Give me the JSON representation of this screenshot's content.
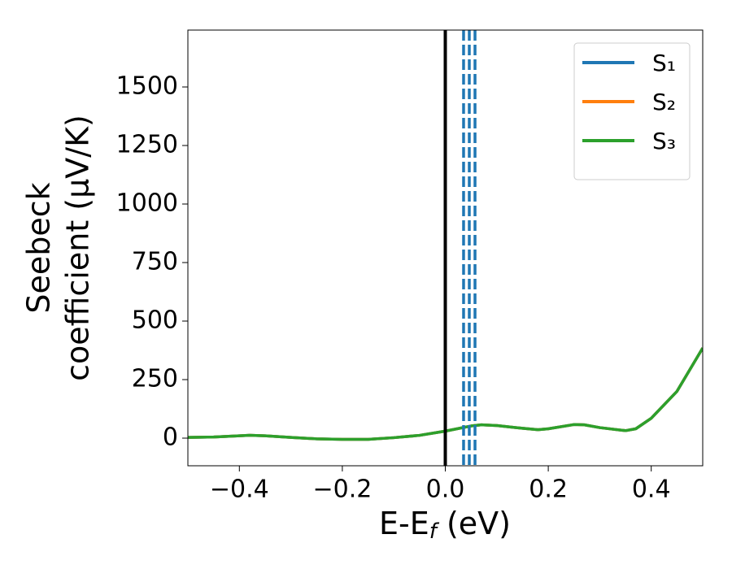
{
  "chart_data": {
    "type": "line",
    "ylabel": [
      "Seebeck",
      "coefficient  (μV/K)"
    ],
    "xlabel": {
      "main": "E-E",
      "sub": "f",
      "rest": " (eV)"
    },
    "x": [
      -0.5,
      -0.45,
      -0.4,
      -0.38,
      -0.35,
      -0.3,
      -0.25,
      -0.2,
      -0.15,
      -0.1,
      -0.05,
      0,
      0.05,
      0.07,
      0.1,
      0.15,
      0.18,
      0.2,
      0.25,
      0.27,
      0.3,
      0.35,
      0.37,
      0.4,
      0.45,
      0.5
    ],
    "series": [
      {
        "name": "S₁",
        "color": "#1f77b4",
        "values": [
          3,
          5,
          10,
          12,
          10,
          3,
          -3,
          -5,
          -5,
          2,
          12,
          30,
          52,
          57,
          54,
          42,
          36,
          40,
          58,
          57,
          45,
          32,
          40,
          85,
          200,
          385
        ]
      },
      {
        "name": "S₂",
        "color": "#ff7f0e",
        "values": [
          3,
          5,
          10,
          12,
          10,
          3,
          -3,
          -5,
          -5,
          2,
          12,
          30,
          52,
          57,
          54,
          42,
          36,
          40,
          58,
          57,
          45,
          32,
          40,
          85,
          200,
          385
        ]
      },
      {
        "name": "S₃",
        "color": "#2ca02c",
        "values": [
          3,
          5,
          10,
          12,
          10,
          3,
          -3,
          -5,
          -5,
          2,
          12,
          30,
          52,
          57,
          54,
          42,
          36,
          40,
          58,
          57,
          45,
          32,
          40,
          85,
          200,
          385
        ]
      }
    ],
    "vlines": [
      {
        "x": 0,
        "color": "#000000",
        "style": "solid"
      },
      {
        "x": 0.0355,
        "color": "#1f77b4",
        "style": "dashed"
      },
      {
        "x": 0.0466,
        "color": "#1f77b4",
        "style": "dashed"
      },
      {
        "x": 0.0577,
        "color": "#1f77b4",
        "style": "dashed"
      }
    ],
    "xlim": [
      -0.5,
      0.5
    ],
    "ylim": [
      -118,
      1743
    ],
    "xticks": [
      {
        "value": -0.4,
        "label": "−0.4"
      },
      {
        "value": -0.2,
        "label": "−0.2"
      },
      {
        "value": 0,
        "label": "0.0"
      },
      {
        "value": 0.2,
        "label": "0.2"
      },
      {
        "value": 0.4,
        "label": "0.4"
      }
    ],
    "yticks": [
      0,
      250,
      500,
      750,
      1000,
      1250,
      1500
    ],
    "legend": "upper right"
  }
}
